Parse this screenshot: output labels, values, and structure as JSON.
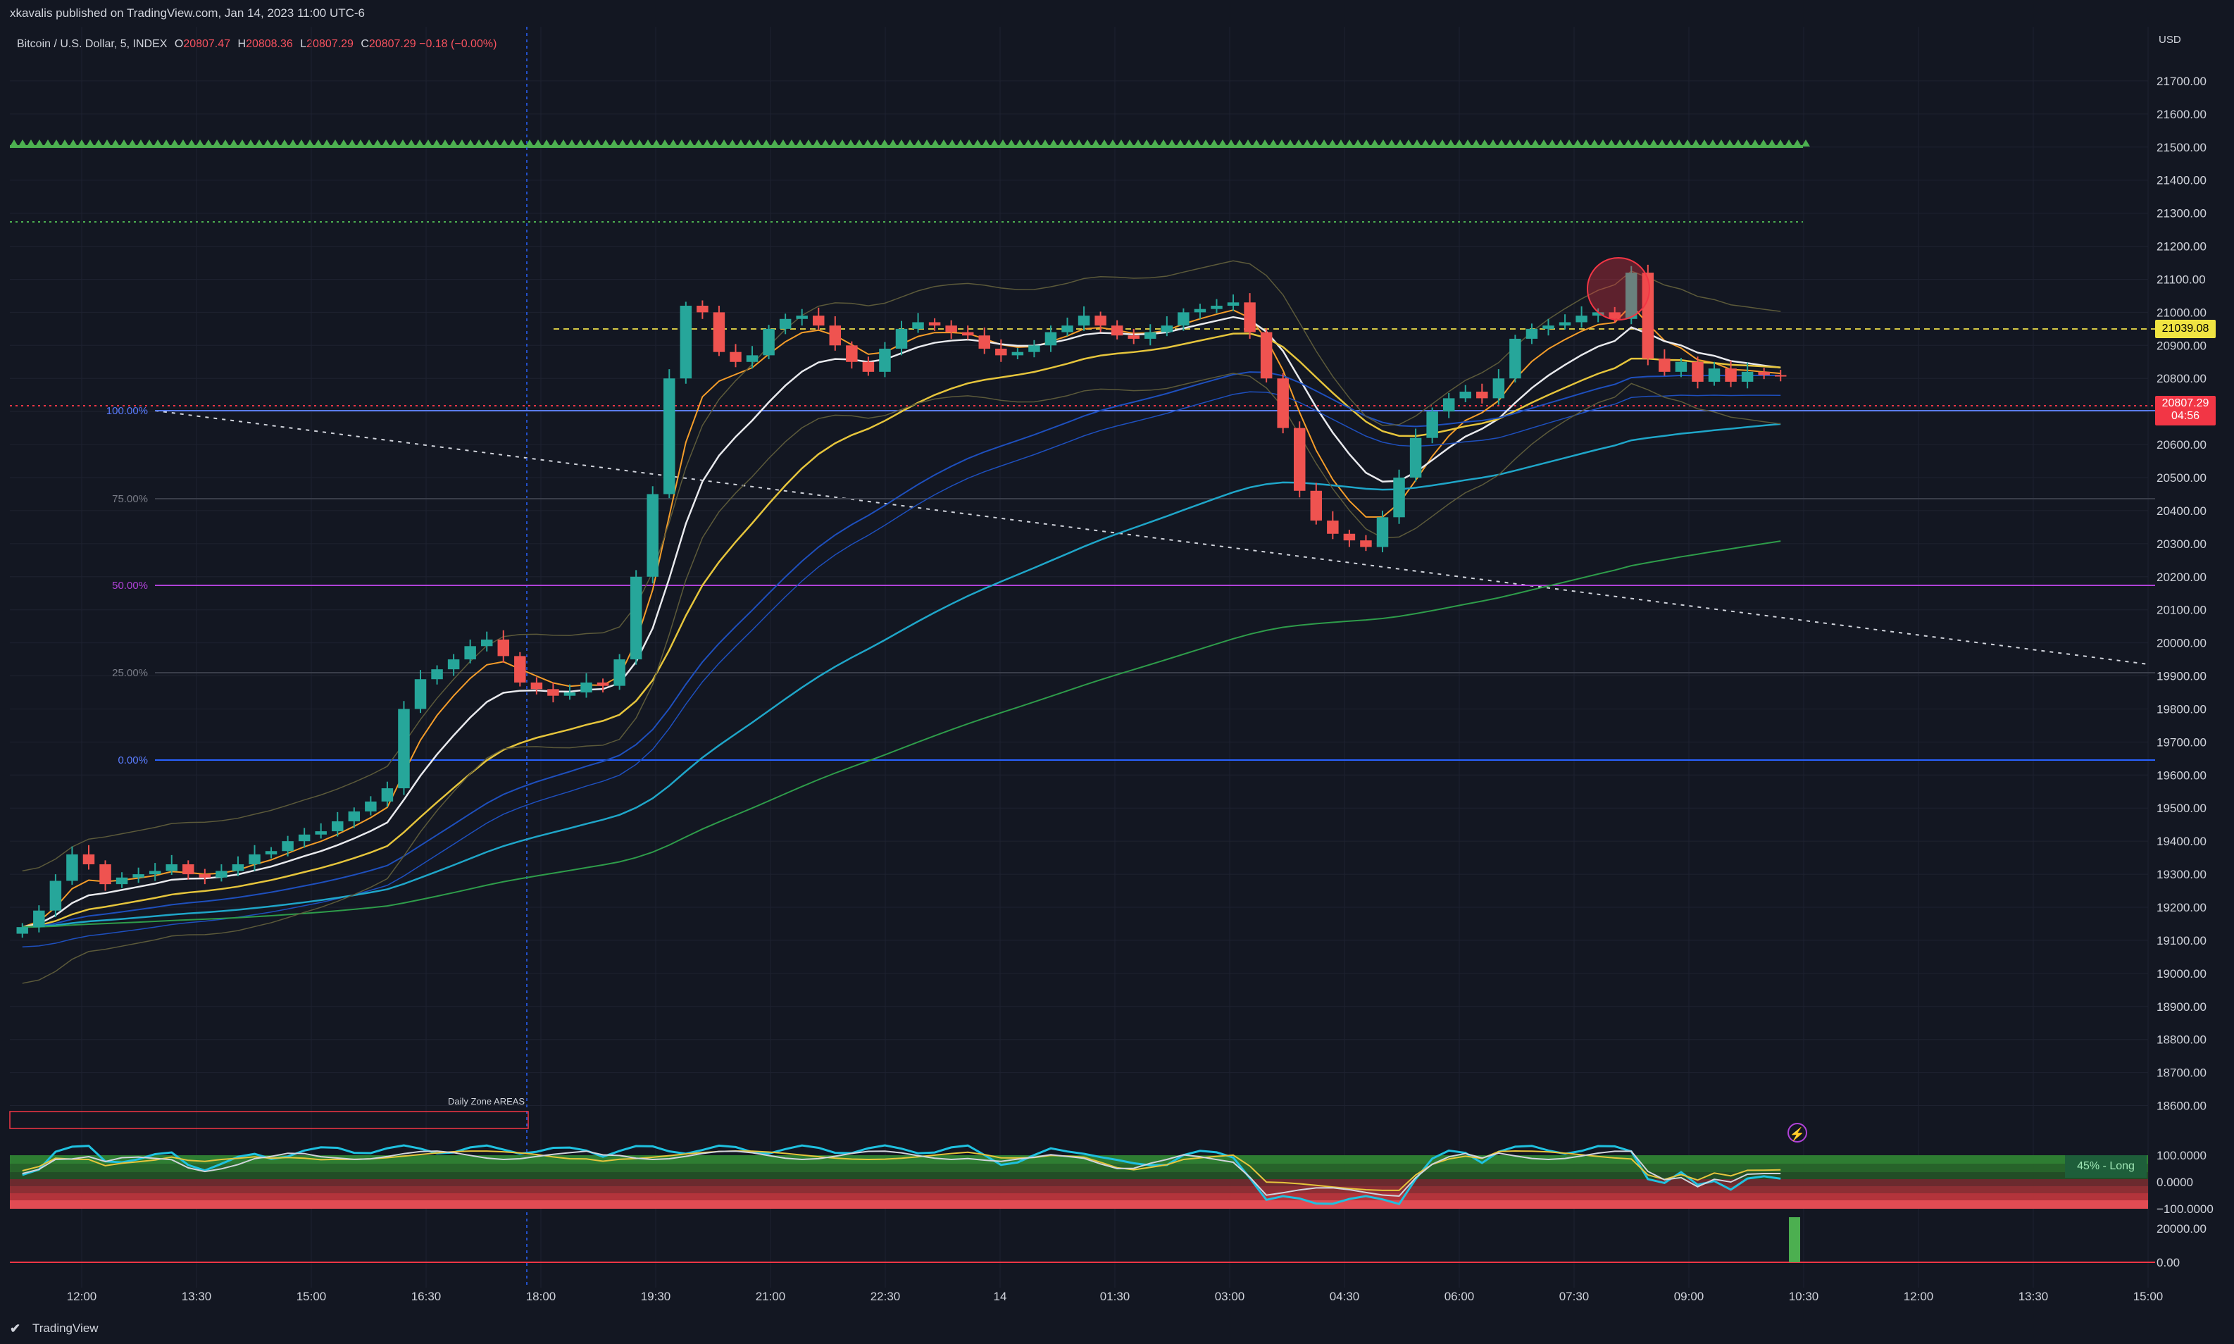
{
  "header": {
    "published_text": "xkavalis published on TradingView.com, Jan 14, 2023 11:00 UTC-6"
  },
  "symbol": {
    "name": "Bitcoin / U.S. Dollar, 5, INDEX",
    "open_label": "O",
    "open": "20807.47",
    "high_label": "H",
    "high": "20808.36",
    "low_label": "L",
    "low": "20807.29",
    "close_label": "C",
    "close": "20807.29",
    "change": "−0.18 (−0.00%)"
  },
  "price_axis": {
    "currency": "USD",
    "ticks": [
      "21700.00",
      "21600.00",
      "21500.00",
      "21400.00",
      "21300.00",
      "21200.00",
      "21100.00",
      "21000.00",
      "20900.00",
      "20800.00",
      "20700.00",
      "20600.00",
      "20500.00",
      "20400.00",
      "20300.00",
      "20200.00",
      "20100.00",
      "20000.00",
      "19900.00",
      "19800.00",
      "19700.00",
      "19600.00",
      "19500.00",
      "19400.00",
      "19300.00",
      "19200.00",
      "19100.00",
      "19000.00",
      "18900.00",
      "18800.00",
      "18700.00",
      "18600.00"
    ],
    "last_price_tag": "20807.29",
    "countdown": "04:56",
    "level_tag": "21039.08"
  },
  "oscillator": {
    "ticks": [
      "100.0000",
      "0.0000",
      "−100.0000"
    ],
    "badge": "45% - Long"
  },
  "volume_pane": {
    "ticks": [
      "20000.00",
      "0.00"
    ]
  },
  "time_axis": {
    "ticks": [
      "12:00",
      "13:30",
      "15:00",
      "16:30",
      "18:00",
      "19:30",
      "21:00",
      "22:30",
      "14",
      "01:30",
      "03:00",
      "04:30",
      "06:00",
      "07:30",
      "09:00",
      "10:30",
      "12:00",
      "13:30",
      "15:00"
    ]
  },
  "fib_levels": [
    {
      "label": "100.00%",
      "color": "#5a7cff"
    },
    {
      "label": "75.00%",
      "color": "#787b86"
    },
    {
      "label": "50.00%",
      "color": "#b042d8"
    },
    {
      "label": "25.00%",
      "color": "#787b86"
    },
    {
      "label": "0.00%",
      "color": "#5a7cff"
    }
  ],
  "annotations": {
    "zone_label": "Daily Zone AREAS",
    "bolt_icon": "lightning-bolt-icon"
  },
  "footer": {
    "brand": "TradingView",
    "logo_icon": "tradingview-logo-icon"
  },
  "colors": {
    "background": "#131722",
    "up_candle": "#26a69a",
    "down_candle": "#ef5350",
    "accent_green": "#4caf50"
  },
  "chart_data": {
    "type": "candlestick",
    "y_range": [
      18550,
      21800
    ],
    "close_series": [
      19140,
      19190,
      19280,
      19360,
      19330,
      19270,
      19290,
      19300,
      19310,
      19330,
      19300,
      19290,
      19310,
      19330,
      19360,
      19370,
      19400,
      19420,
      19430,
      19460,
      19490,
      19520,
      19560,
      19800,
      19890,
      19920,
      19950,
      19990,
      20010,
      19960,
      19880,
      19860,
      19840,
      19850,
      19880,
      19870,
      19950,
      20200,
      20450,
      20800,
      21020,
      21000,
      20880,
      20850,
      20870,
      20950,
      20980,
      20990,
      20960,
      20900,
      20850,
      20820,
      20890,
      20950,
      20970,
      20960,
      20940,
      20930,
      20890,
      20870,
      20880,
      20900,
      20940,
      20960,
      20990,
      20960,
      20930,
      20920,
      20940,
      20960,
      21000,
      21010,
      21020,
      21030,
      20940,
      20800,
      20650,
      20460,
      20370,
      20330,
      20310,
      20290,
      20380,
      20500,
      20620,
      20700,
      20740,
      20760,
      20740,
      20800,
      20920,
      20950,
      20960,
      20970,
      20990,
      21000,
      20980,
      21120,
      20860,
      20820,
      20850,
      20790,
      20830,
      20790,
      20820,
      20810,
      20807.29
    ],
    "ema_levels": [
      21039.08,
      20807.29
    ]
  }
}
